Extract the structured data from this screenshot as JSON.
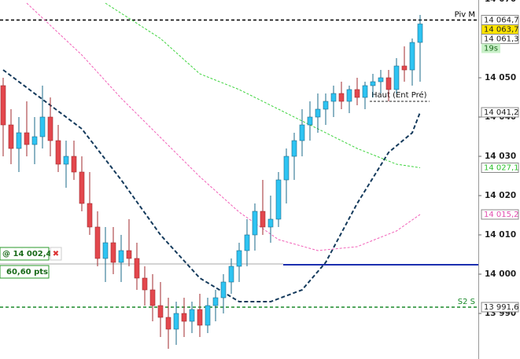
{
  "chart_data": {
    "type": "candlestick",
    "ylim": [
      13978.4,
      14069.8
    ],
    "yticks": [
      {
        "value": 14070,
        "label": "14 070"
      },
      {
        "value": 14050,
        "label": "14 050"
      },
      {
        "value": 14040,
        "label": "14 040"
      },
      {
        "value": 14030,
        "label": "14 030"
      },
      {
        "value": 14020,
        "label": "14 020"
      },
      {
        "value": 14010,
        "label": "14 010"
      },
      {
        "value": 14000,
        "label": "14 000"
      },
      {
        "value": 13990,
        "label": "13 990"
      }
    ],
    "up_color": "#2ec4f2",
    "down_color": "#e3474d",
    "open": [
      14048,
      14038,
      14032,
      14036,
      14033,
      14035,
      14040,
      14034,
      14028,
      14030,
      14026,
      14018,
      14012,
      14004,
      14008,
      14003,
      14006,
      14004,
      13999,
      13996,
      13992,
      13989,
      13986,
      13990,
      13988,
      13991,
      13987,
      13992,
      13994,
      13998,
      14002,
      14006,
      14010,
      14016,
      14012,
      14014,
      14024,
      14030,
      14034,
      14038,
      14040,
      14042,
      14044,
      14046,
      14044,
      14047,
      14045,
      14048,
      14049,
      14050,
      14047,
      14053,
      14052,
      14059
    ],
    "high": [
      14050,
      14042,
      14040,
      14044,
      14040,
      14048,
      14045,
      14038,
      14034,
      14034,
      14030,
      14026,
      14016,
      14012,
      14012,
      14010,
      14014,
      14008,
      14002,
      14000,
      13998,
      13994,
      13993,
      13994,
      13993,
      13995,
      13994,
      13996,
      14000,
      14004,
      14008,
      14014,
      14018,
      14024,
      14020,
      14026,
      14032,
      14036,
      14042,
      14044,
      14046,
      14046,
      14048,
      14049,
      14048,
      14050,
      14049,
      14051,
      14052,
      14052,
      14055,
      14058,
      14060,
      14066
    ],
    "low": [
      14030,
      14028,
      14026,
      14030,
      14028,
      14032,
      14030,
      14026,
      14022,
      14024,
      14016,
      14010,
      14002,
      13998,
      14000,
      13998,
      14002,
      13996,
      13992,
      13988,
      13984,
      13981,
      13982,
      13984,
      13985,
      13984,
      13985,
      13988,
      13990,
      13995,
      13998,
      14002,
      14006,
      14010,
      14008,
      14012,
      14018,
      14024,
      14030,
      14034,
      14036,
      14038,
      14040,
      14042,
      14041,
      14043,
      14042,
      14045,
      14046,
      14044,
      14046,
      14049,
      14048,
      14049
    ],
    "close": [
      14038,
      14032,
      14036,
      14033,
      14035,
      14040,
      14034,
      14028,
      14030,
      14026,
      14018,
      14012,
      14004,
      14008,
      14003,
      14006,
      14004,
      13999,
      13996,
      13992,
      13989,
      13986,
      13990,
      13988,
      13991,
      13987,
      13992,
      13994,
      13998,
      14002,
      14006,
      14010,
      14016,
      14012,
      14014,
      14024,
      14030,
      14034,
      14038,
      14040,
      14042,
      14044,
      14046,
      14044,
      14047,
      14045,
      14048,
      14049,
      14050,
      14047,
      14053,
      14052,
      14059,
      14063.7
    ],
    "overlays": [
      {
        "color": "#143a5c",
        "x": [
          0,
          10,
          15,
          20,
          25,
          30,
          34,
          38,
          41,
          45,
          49,
          52,
          53
        ],
        "values": [
          14052,
          14037,
          14024,
          14010,
          13999,
          13993,
          13993,
          13996,
          14003,
          14018,
          14031,
          14036,
          14041.2
        ]
      },
      {
        "color": "#3ed43e",
        "x": [
          13,
          20,
          25,
          30,
          35,
          40,
          45,
          50,
          53
        ],
        "values": [
          14069,
          14060,
          14051,
          14047,
          14042,
          14037,
          14032,
          14028,
          14027.1
        ]
      },
      {
        "color": "#f25fb8",
        "x": [
          3,
          10,
          15,
          20,
          25,
          30,
          35,
          40,
          45,
          50,
          53
        ],
        "values": [
          14069,
          14055.8,
          14044.8,
          14034.8,
          14024.8,
          14015.8,
          14008.8,
          14006,
          14007,
          14011,
          14015.2
        ]
      }
    ],
    "levels": [
      {
        "value": 14064.7,
        "label": "Piv M",
        "color": "#000000"
      },
      {
        "value": 13991.6,
        "label": "S2 S",
        "color": "#1a8a2a"
      }
    ],
    "prev_high": {
      "value": 14044,
      "label": "Haut (Ent Pré)"
    },
    "order": {
      "value": 14002.4,
      "label": "@ 14 002,4",
      "distance": "60,60 pts",
      "color": "#1c2fb0"
    },
    "badges": [
      {
        "value": 14064.7,
        "label": "14 064,7",
        "color": "#ffffff"
      },
      {
        "value": 14063.7,
        "label": "14 063,7",
        "color": "#ffe400"
      },
      {
        "value": 14061.3,
        "label": "14 061,3",
        "color": "#ffffff"
      },
      {
        "value": 14041.2,
        "label": "14 041,2",
        "color": "#ffffff"
      },
      {
        "value": 14027.1,
        "label": "14 027,1",
        "color": "#ffffff",
        "text_color": "#2cc02c"
      },
      {
        "value": 14015.2,
        "label": "14 015,2",
        "color": "#ffffff",
        "text_color": "#e24fb0"
      },
      {
        "value": 13991.6,
        "label": "13 991,6",
        "color": "#ffffff"
      }
    ],
    "timer": "19s"
  }
}
